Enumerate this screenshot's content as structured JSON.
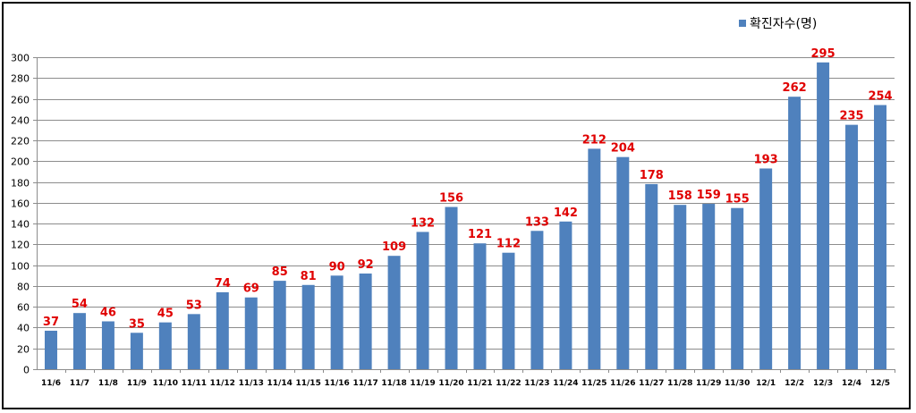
{
  "chart_data": {
    "type": "bar",
    "categories": [
      "11/6",
      "11/7",
      "11/8",
      "11/9",
      "11/10",
      "11/11",
      "11/12",
      "11/13",
      "11/14",
      "11/15",
      "11/16",
      "11/17",
      "11/18",
      "11/19",
      "11/20",
      "11/21",
      "11/22",
      "11/23",
      "11/24",
      "11/25",
      "11/26",
      "11/27",
      "11/28",
      "11/29",
      "11/30",
      "12/1",
      "12/2",
      "12/3",
      "12/4",
      "12/5"
    ],
    "series": [
      {
        "name": "확진자수(명)",
        "values": [
          37,
          54,
          46,
          35,
          45,
          53,
          74,
          69,
          85,
          81,
          90,
          92,
          109,
          132,
          156,
          121,
          112,
          133,
          142,
          212,
          204,
          178,
          158,
          159,
          155,
          193,
          262,
          295,
          235,
          254
        ]
      }
    ],
    "ylim": [
      0,
      300
    ],
    "yticks": [
      0,
      20,
      40,
      60,
      80,
      100,
      120,
      140,
      160,
      180,
      200,
      220,
      240,
      260,
      280,
      300
    ],
    "grid": true,
    "legend_position": "top-right",
    "colors": {
      "bar": "#4F81BD",
      "data_label": "#E00000",
      "grid": "#8C8C8C",
      "axis": "#8C8C8C"
    }
  }
}
